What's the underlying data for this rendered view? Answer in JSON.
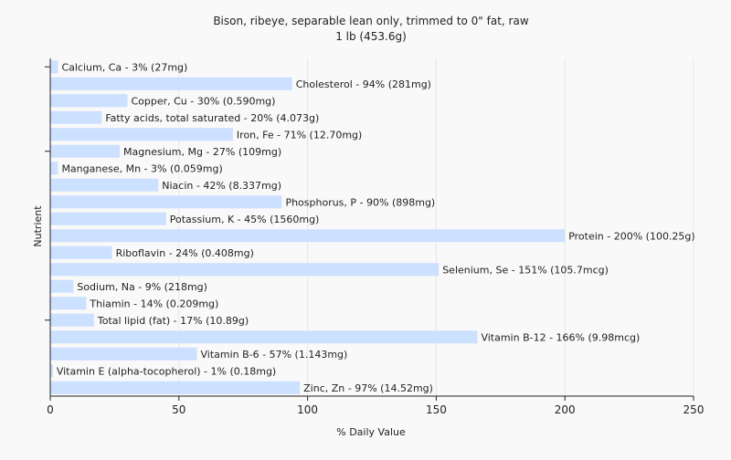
{
  "chart_data": {
    "type": "bar",
    "orientation": "horizontal",
    "title": "Bison, ribeye, separable lean only, trimmed to 0\" fat, raw",
    "subtitle": "1 lb (453.6g)",
    "xlabel": "% Daily Value",
    "ylabel": "Nutrient",
    "xlim": [
      0,
      250
    ],
    "xticks": [
      0,
      50,
      100,
      150,
      200,
      250
    ],
    "grid": true,
    "bar_color": "#cce0ff",
    "categories": [
      "Calcium, Ca",
      "Cholesterol",
      "Copper, Cu",
      "Fatty acids, total saturated",
      "Iron, Fe",
      "Magnesium, Mg",
      "Manganese, Mn",
      "Niacin",
      "Phosphorus, P",
      "Potassium, K",
      "Protein",
      "Riboflavin",
      "Selenium, Se",
      "Sodium, Na",
      "Thiamin",
      "Total lipid (fat)",
      "Vitamin B-12",
      "Vitamin B-6",
      "Vitamin E (alpha-tocopherol)",
      "Zinc, Zn"
    ],
    "values": [
      3,
      94,
      30,
      20,
      71,
      27,
      3,
      42,
      90,
      45,
      200,
      24,
      151,
      9,
      14,
      17,
      166,
      57,
      1,
      97
    ],
    "labels": [
      "Calcium, Ca - 3% (27mg)",
      "Cholesterol - 94% (281mg)",
      "Copper, Cu - 30% (0.590mg)",
      "Fatty acids, total saturated - 20% (4.073g)",
      "Iron, Fe - 71% (12.70mg)",
      "Magnesium, Mg - 27% (109mg)",
      "Manganese, Mn - 3% (0.059mg)",
      "Niacin - 42% (8.337mg)",
      "Phosphorus, P - 90% (898mg)",
      "Potassium, K - 45% (1560mg)",
      "Protein - 200% (100.25g)",
      "Riboflavin - 24% (0.408mg)",
      "Selenium, Se - 151% (105.7mcg)",
      "Sodium, Na - 9% (218mg)",
      "Thiamin - 14% (0.209mg)",
      "Total lipid (fat) - 17% (10.89g)",
      "Vitamin B-12 - 166% (9.98mcg)",
      "Vitamin B-6 - 57% (1.143mg)",
      "Vitamin E (alpha-tocopherol) - 1% (0.18mg)",
      "Zinc, Zn - 97% (14.52mg)"
    ]
  }
}
